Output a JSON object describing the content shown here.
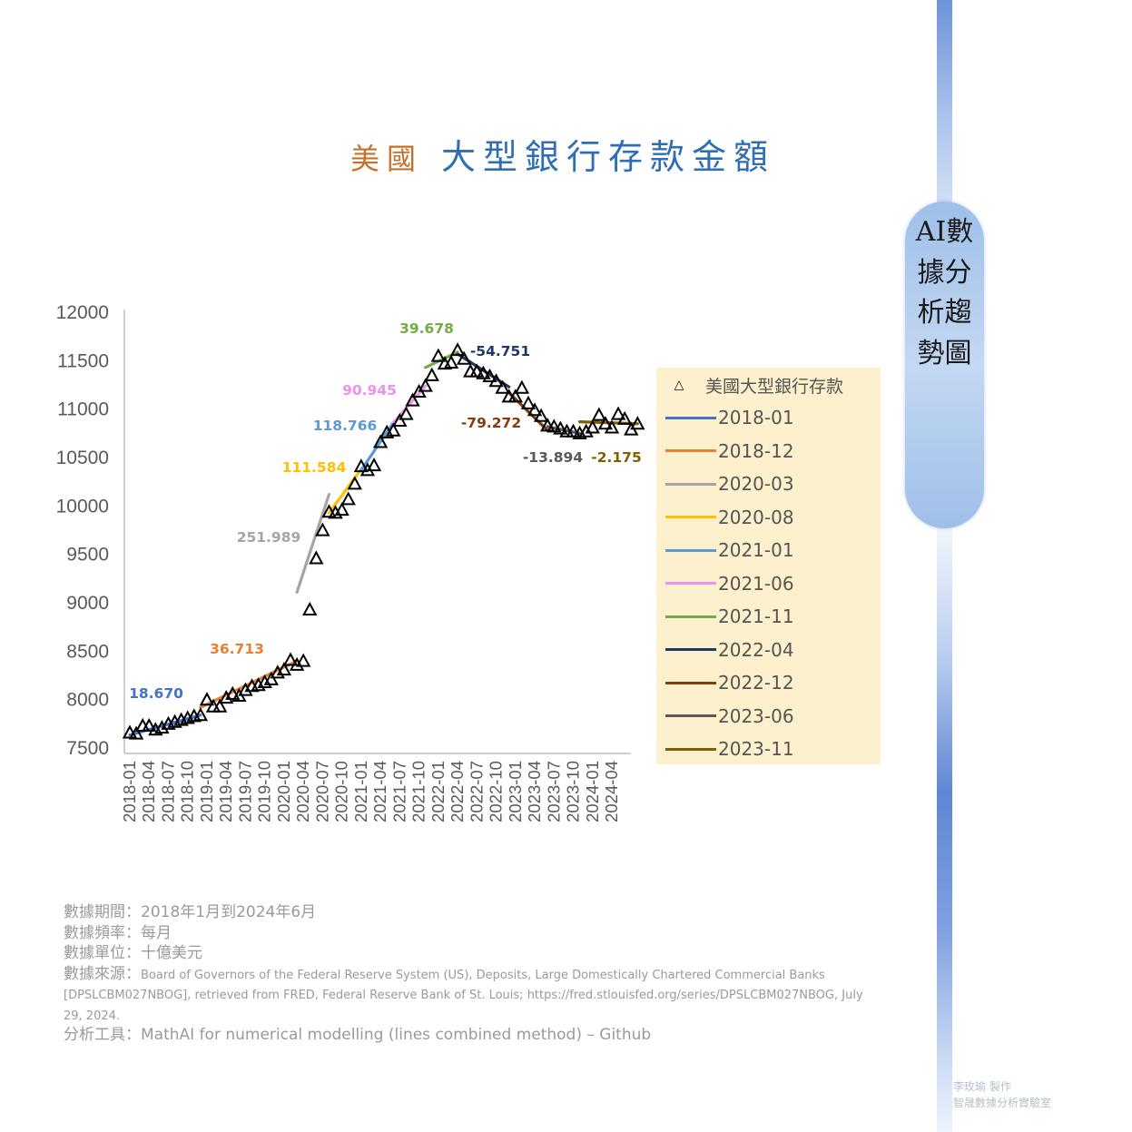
{
  "page": {
    "title_part1": "美國",
    "title_part2": "大型銀行存款金額",
    "side_label": "AI數據分析趨勢圖",
    "watermark_line1": "李玫瑜 製作",
    "watermark_line2": "智晟數據分析實驗室"
  },
  "colors": {
    "title_accent": "#c8702a",
    "title_main": "#2f6eb3",
    "legend_bg": "#fdf0cc",
    "side_strip": "#6b93d6"
  },
  "footer": {
    "line1": "數據期間：2018年1月到2024年6月",
    "line2": "數據頻率：每月",
    "line3": "數據單位：十億美元",
    "line4_label": "數據來源：",
    "line4_text": "Board of Governors of the Federal Reserve System (US), Deposits, Large Domestically Chartered Commercial Banks [DPSLCBM027NBOG], retrieved from FRED, Federal Reserve Bank of St. Louis; https://fred.stlouisfed.org/series/DPSLCBM027NBOG, July 29, 2024.",
    "line5": "分析工具：MathAI for numerical modelling (lines combined method) – Github"
  },
  "chart_data": {
    "type": "scatter",
    "title": "美國大型銀行存款金額",
    "ylim": [
      7500,
      12000
    ],
    "y_ticks": [
      "12000",
      "11500",
      "11000",
      "10500",
      "10000",
      "9500",
      "9000",
      "8500",
      "8000",
      "7500"
    ],
    "x_ticks": [
      "2018-01",
      "2018-04",
      "2018-07",
      "2018-10",
      "2019-01",
      "2019-04",
      "2019-07",
      "2019-10",
      "2020-01",
      "2020-04",
      "2020-07",
      "2020-10",
      "2021-01",
      "2021-04",
      "2021-07",
      "2021-10",
      "2022-01",
      "2022-04",
      "2022-07",
      "2022-10",
      "2023-01",
      "2023-04",
      "2023-07",
      "2023-10",
      "2024-01",
      "2024-04"
    ],
    "grid": false,
    "legend_position": "right",
    "scatter_series": {
      "name": "美國大型銀行存款",
      "start": "2018-01",
      "values": [
        7650,
        7640,
        7720,
        7720,
        7680,
        7700,
        7740,
        7760,
        7780,
        7800,
        7820,
        7830,
        7990,
        7920,
        7920,
        8010,
        8050,
        8030,
        8090,
        8130,
        8140,
        8170,
        8200,
        8270,
        8300,
        8400,
        8350,
        8390,
        8920,
        9450,
        9740,
        9930,
        9920,
        9950,
        10060,
        10220,
        10400,
        10360,
        10410,
        10650,
        10750,
        10770,
        10870,
        10940,
        11080,
        11170,
        11230,
        11340,
        11540,
        11460,
        11470,
        11600,
        11510,
        11380,
        11380,
        11360,
        11330,
        11280,
        11210,
        11120,
        11120,
        11210,
        11050,
        10980,
        10920,
        10820,
        10810,
        10790,
        10760,
        10760,
        10740,
        10760,
        10800,
        10930,
        10840,
        10800,
        10940,
        10890,
        10780,
        10840
      ]
    },
    "segments": [
      {
        "name": "2018-01",
        "color": "#4472c4",
        "slope_label": "18.670",
        "y_start": 7625,
        "y_end": 7830
      },
      {
        "name": "2018-12",
        "color": "#ed7d31",
        "slope_label": "36.713",
        "y_start": 7910,
        "y_end": 8390
      },
      {
        "name": "2020-03",
        "color": "#a5a5a5",
        "slope_label": "251.989",
        "y_start": 9100,
        "y_end": 10110
      },
      {
        "name": "2020-08",
        "color": "#ffc000",
        "slope_label": "111.584",
        "y_start": 9920,
        "y_end": 10370
      },
      {
        "name": "2021-01",
        "color": "#5b9bd5",
        "slope_label": "118.766",
        "y_start": 10360,
        "y_end": 10850
      },
      {
        "name": "2021-06",
        "color": "#f08ff0",
        "slope_label": "90.945",
        "y_start": 10850,
        "y_end": 11230
      },
      {
        "name": "2021-11",
        "color": "#70ad47",
        "slope_label": "39.678",
        "y_start": 11420,
        "y_end": 11580
      },
      {
        "name": "2022-04",
        "color": "#203864",
        "slope_label": "-54.751",
        "y_start": 11560,
        "y_end": 11220
      },
      {
        "name": "2022-12",
        "color": "#843c0c",
        "slope_label": "-79.272",
        "y_start": 11160,
        "y_end": 10770
      },
      {
        "name": "2023-06",
        "color": "#595959",
        "slope_label": "-13.894",
        "y_start": 10810,
        "y_end": 10740
      },
      {
        "name": "2023-11",
        "color": "#7f6000",
        "slope_label": "-2.175",
        "y_start": 10860,
        "y_end": 10840
      }
    ]
  }
}
